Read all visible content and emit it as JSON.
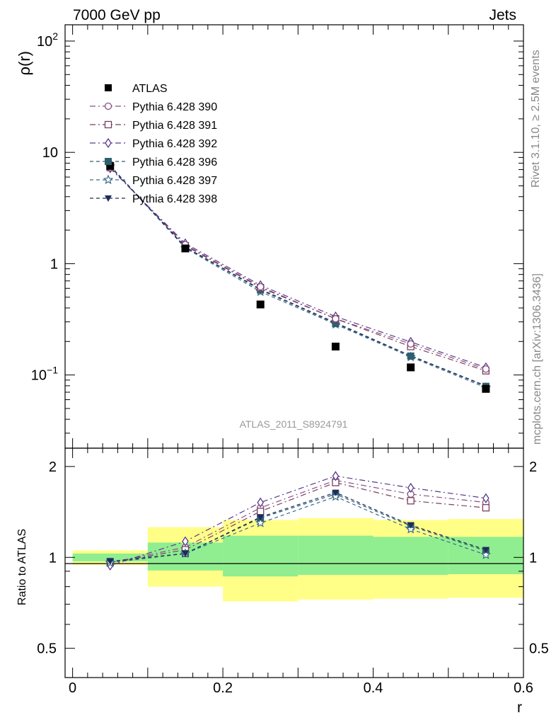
{
  "header": {
    "left": "7000 GeV pp",
    "right": "Jets"
  },
  "side_texts": {
    "rivet": "Rivet 3.1.10, ≥ 2.5M events",
    "mcplots": "mcplots.cern.ch [arXiv:1306.3436]"
  },
  "analysis_label": "ATLAS_2011_S8924791",
  "chart_data": [
    {
      "type": "scatter",
      "panel": "main",
      "ylabel": "ρ(r)",
      "yscale": "log",
      "ylim": [
        0.022,
        140
      ],
      "xlim": [
        -0.01,
        0.6
      ],
      "ytick_labels": [
        "10^2",
        "10",
        "1",
        "10^-1"
      ],
      "x": [
        0.05,
        0.15,
        0.25,
        0.35,
        0.45,
        0.55
      ],
      "legend_position": "upper-left",
      "series": [
        {
          "name": "ATLAS",
          "color": "#000000",
          "marker": "filled-square",
          "line": "none",
          "values": [
            7.55,
            1.37,
            0.43,
            0.18,
            0.117,
            0.075
          ]
        },
        {
          "name": "Pythia 6.428 390",
          "color": "#8a4f86",
          "marker": "open-circle",
          "line": "dashdot",
          "values": [
            7.3,
            1.48,
            0.62,
            0.32,
            0.19,
            0.113
          ]
        },
        {
          "name": "Pythia 6.428 391",
          "color": "#7a3f5e",
          "marker": "open-square",
          "line": "dashdot",
          "values": [
            7.3,
            1.45,
            0.61,
            0.32,
            0.18,
            0.109
          ]
        },
        {
          "name": "Pythia 6.428 392",
          "color": "#5a3a8a",
          "marker": "open-diamond",
          "line": "dashdot",
          "values": [
            7.2,
            1.52,
            0.64,
            0.335,
            0.198,
            0.117
          ]
        },
        {
          "name": "Pythia 6.428 396",
          "color": "#2f5f6f",
          "marker": "filled-square",
          "line": "dashed",
          "values": [
            7.6,
            1.4,
            0.58,
            0.29,
            0.148,
            0.079
          ]
        },
        {
          "name": "Pythia 6.428 397",
          "color": "#3c6a8a",
          "marker": "open-star",
          "line": "dashed",
          "values": [
            7.5,
            1.38,
            0.56,
            0.285,
            0.145,
            0.077
          ]
        },
        {
          "name": "Pythia 6.428 398",
          "color": "#1f2a5a",
          "marker": "filled-triangle-down",
          "line": "dashed",
          "values": [
            7.55,
            1.41,
            0.59,
            0.295,
            0.149,
            0.08
          ]
        }
      ]
    },
    {
      "type": "line",
      "panel": "ratio",
      "ylabel": "Ratio to ATLAS",
      "xlabel": "r",
      "yscale": "log",
      "ylim": [
        0.4,
        2.3
      ],
      "xlim": [
        -0.01,
        0.6
      ],
      "ytick_labels": [
        "2",
        "1",
        "0.5"
      ],
      "xtick_labels": [
        "0",
        "0.2",
        "0.4",
        "0.6"
      ],
      "bands": {
        "bin_edges": [
          0.0,
          0.1,
          0.2,
          0.3,
          0.4,
          0.5,
          0.6
        ],
        "stat": {
          "color": "#90ee90",
          "low": [
            0.97,
            0.905,
            0.865,
            0.875,
            0.875,
            0.88
          ],
          "high": [
            1.03,
            1.12,
            1.18,
            1.18,
            1.17,
            1.17
          ]
        },
        "total": {
          "color": "#ffff88",
          "low": [
            0.945,
            0.8,
            0.715,
            0.725,
            0.73,
            0.735
          ],
          "high": [
            1.055,
            1.26,
            1.33,
            1.35,
            1.33,
            1.34
          ]
        }
      },
      "x": [
        0.05,
        0.15,
        0.25,
        0.35,
        0.45,
        0.55
      ],
      "series": [
        {
          "name": "Pythia 6.428 390",
          "values": [
            0.96,
            1.08,
            1.46,
            1.8,
            1.62,
            1.52
          ]
        },
        {
          "name": "Pythia 6.428 391",
          "values": [
            0.96,
            1.06,
            1.42,
            1.77,
            1.54,
            1.46
          ]
        },
        {
          "name": "Pythia 6.428 392",
          "values": [
            0.94,
            1.13,
            1.52,
            1.86,
            1.7,
            1.57
          ]
        },
        {
          "name": "Pythia 6.428 396",
          "values": [
            0.97,
            1.03,
            1.35,
            1.62,
            1.27,
            1.05
          ]
        },
        {
          "name": "Pythia 6.428 397",
          "values": [
            0.96,
            1.03,
            1.3,
            1.59,
            1.24,
            1.02
          ]
        },
        {
          "name": "Pythia 6.428 398",
          "values": [
            0.97,
            1.03,
            1.36,
            1.64,
            1.28,
            1.06
          ]
        }
      ]
    }
  ]
}
